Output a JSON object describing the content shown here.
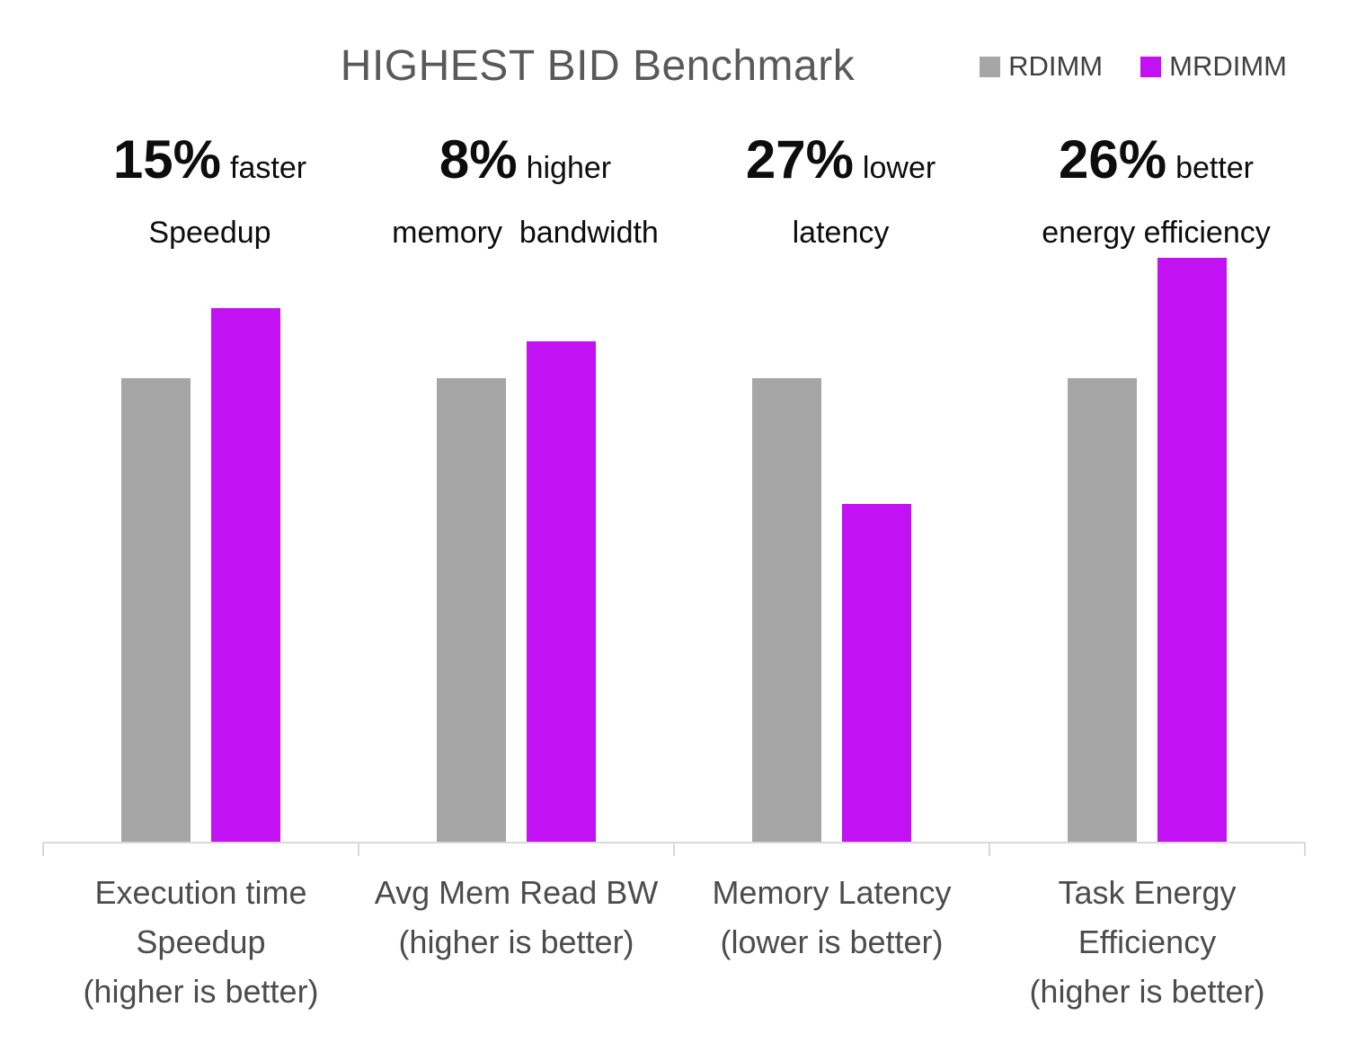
{
  "title": "HIGHEST BID Benchmark",
  "colors": {
    "rdimm": "#A6A6A6",
    "mrdimm": "#C211F2",
    "title_text": "#595959",
    "legend_text": "#404040",
    "axis_line": "#D9D9D9",
    "axis_label_text": "#4C4C4C",
    "annotation_text": "#0D0D0D",
    "background": "#FFFFFF"
  },
  "legend": {
    "position": "top-right",
    "items": [
      {
        "label": "RDIMM",
        "color": "#A6A6A6"
      },
      {
        "label": "MRDIMM",
        "color": "#C211F2"
      }
    ]
  },
  "annotations": [
    {
      "value": "15%",
      "qualifier": "faster",
      "detail": "Speedup"
    },
    {
      "value": "8%",
      "qualifier": "higher",
      "detail": "memory  bandwidth"
    },
    {
      "value": "27%",
      "qualifier": "lower",
      "detail": "latency"
    },
    {
      "value": "26%",
      "qualifier": "better",
      "detail": "energy efficiency"
    }
  ],
  "x_axis": {
    "category_label_lines": [
      [
        "Execution time",
        "Speedup",
        "(higher is better)"
      ],
      [
        "Avg Mem Read BW",
        "(higher is better)"
      ],
      [
        "Memory Latency",
        "(lower is better)"
      ],
      [
        "Task Energy",
        "Efficiency",
        "(higher is better)"
      ]
    ]
  },
  "chart_data": {
    "type": "bar",
    "title": "HIGHEST BID Benchmark",
    "categories": [
      "Execution time Speedup (higher is better)",
      "Avg Mem Read BW (higher is better)",
      "Memory Latency (lower is better)",
      "Task Energy Efficiency (higher is better)"
    ],
    "series": [
      {
        "name": "RDIMM",
        "color": "#A6A6A6",
        "values": [
          1.0,
          1.0,
          1.0,
          1.0
        ]
      },
      {
        "name": "MRDIMM",
        "color": "#C211F2",
        "values": [
          1.15,
          1.08,
          0.73,
          1.26
        ]
      }
    ],
    "value_basis": "normalized, RDIMM = 1.0 per category",
    "annotations": [
      "15% faster Speedup",
      "8% higher memory bandwidth",
      "27% lower latency",
      "26% better energy efficiency"
    ],
    "xlabel": "",
    "ylabel": "",
    "ylim": [
      0,
      1.45
    ],
    "grid": false,
    "y_axis_visible": false,
    "legend_position": "top-right"
  }
}
